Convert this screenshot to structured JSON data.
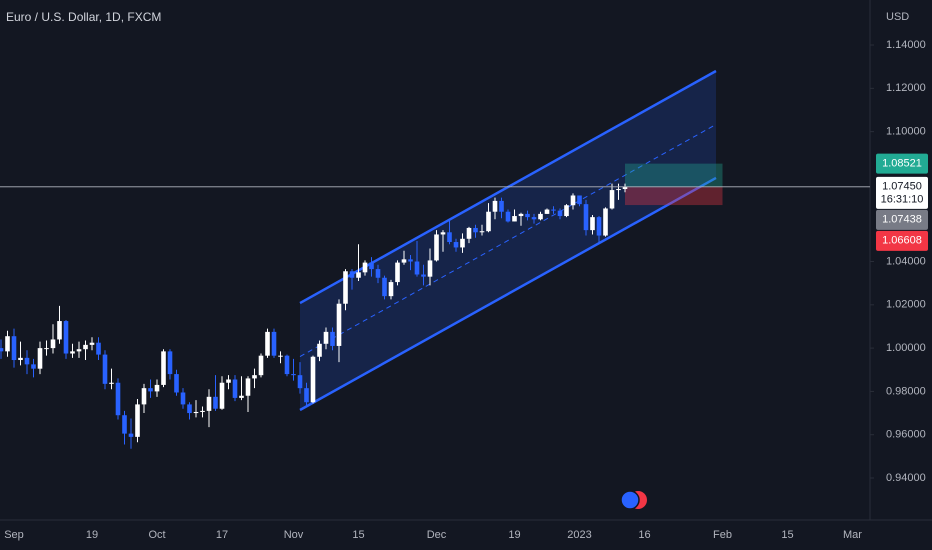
{
  "chart_data": {
    "type": "candlestick",
    "title": "Euro / U.S. Dollar, 1D, FXCM",
    "y_unit": "USD",
    "categories": [
      null,
      null,
      "Sep",
      null,
      null,
      null,
      null,
      null,
      null,
      null,
      null,
      null,
      null,
      null,
      "19",
      null,
      null,
      null,
      null,
      null,
      null,
      null,
      null,
      null,
      "Oct",
      null,
      null,
      null,
      null,
      null,
      null,
      null,
      null,
      null,
      "17",
      null,
      null,
      null,
      null,
      null,
      null,
      null,
      null,
      null,
      null,
      "Nov",
      null,
      null,
      null,
      null,
      null,
      null,
      null,
      null,
      null,
      "15",
      null,
      null,
      null,
      null,
      null,
      null,
      null,
      null,
      null,
      null,
      null,
      "Dec",
      null,
      null,
      null,
      null,
      null,
      null,
      null,
      null,
      null,
      null,
      null,
      "19",
      null,
      null,
      null,
      null,
      null,
      null,
      null,
      null,
      null,
      "2023",
      null,
      null,
      null,
      null,
      null,
      null,
      null,
      null,
      null,
      "16",
      null,
      null,
      null,
      null,
      null,
      null,
      null,
      null,
      null,
      null,
      null,
      "Feb",
      null,
      null,
      null,
      null,
      null,
      null,
      null,
      null,
      null,
      "15",
      null,
      null,
      null,
      null,
      null,
      null,
      null,
      null,
      null,
      "Mar",
      null,
      null
    ],
    "open": [
      1.0,
      0.9985,
      1.0055,
      0.9945,
      0.9955,
      0.9925,
      0.9905,
      1.0,
      1.0,
      1.004,
      1.0125,
      0.9975,
      0.9985,
      0.9995,
      1.0015,
      1.0025,
      0.997,
      0.9835,
      0.984,
      0.969,
      0.9605,
      0.959,
      0.974,
      0.9815,
      0.98,
      0.983,
      0.9985,
      0.988,
      0.9795,
      0.974,
      0.97,
      0.9705,
      0.971,
      0.9775,
      0.972,
      0.984,
      0.9855,
      0.977,
      0.978,
      0.986,
      0.9875,
      0.9965,
      1.0075,
      0.9965,
      0.9965,
      0.988,
      0.9875,
      0.9815,
      0.975,
      0.996,
      1.002,
      1.0075,
      1.001,
      1.0205,
      1.0355,
      1.0325,
      1.035,
      1.0395,
      1.0365,
      1.0325,
      1.024,
      1.0305,
      1.0395,
      1.041,
      1.04,
      1.034,
      1.033,
      1.0405,
      1.0525,
      1.0535,
      1.049,
      1.0465,
      1.0505,
      1.0555,
      1.0535,
      1.054,
      1.063,
      1.068,
      1.063,
      1.0585,
      1.061,
      1.062,
      1.0605,
      1.0595,
      1.062,
      1.064,
      1.0635,
      1.061,
      1.066,
      1.0705,
      1.0665,
      1.0545,
      1.0605,
      1.052,
      1.0645,
      1.073,
      1.0735,
      null,
      null,
      null,
      null,
      null,
      null,
      null,
      null,
      null,
      null,
      null,
      null,
      null,
      null,
      null,
      null,
      null,
      null,
      null,
      null,
      null,
      null,
      null,
      null,
      null,
      null,
      null,
      null,
      null,
      null,
      null,
      null,
      null,
      null,
      null,
      null,
      null
    ],
    "high": [
      1.004,
      1.008,
      1.009,
      1.003,
      0.999,
      0.995,
      1.003,
      1.0035,
      1.011,
      1.0195,
      1.013,
      1.002,
      1.003,
      1.0035,
      1.005,
      1.005,
      0.999,
      0.9905,
      0.986,
      0.971,
      0.9675,
      0.9765,
      0.9835,
      0.9855,
      0.9855,
      0.9995,
      0.9995,
      0.99,
      0.9815,
      0.975,
      0.976,
      0.973,
      0.981,
      0.9875,
      0.987,
      0.9875,
      0.9875,
      0.987,
      0.987,
      0.9905,
      0.9975,
      1.009,
      1.009,
      0.9985,
      0.997,
      0.995,
      0.9935,
      0.984,
      0.9965,
      1.0035,
      1.0095,
      1.0095,
      1.0225,
      1.0365,
      1.0365,
      1.048,
      1.0405,
      1.042,
      1.0385,
      1.0335,
      1.0315,
      1.0405,
      1.045,
      1.043,
      1.0495,
      1.0385,
      1.046,
      1.0545,
      1.0545,
      1.0595,
      1.0505,
      1.053,
      1.056,
      1.057,
      1.057,
      1.067,
      1.0695,
      1.0695,
      1.064,
      1.064,
      1.0625,
      1.0635,
      1.062,
      1.063,
      1.0645,
      1.0655,
      1.0645,
      1.0665,
      1.0715,
      1.0705,
      1.0685,
      1.0615,
      1.061,
      1.065,
      1.076,
      1.076,
      1.076,
      null,
      null,
      null,
      null,
      null,
      null,
      null,
      null,
      null,
      null,
      null,
      null,
      null,
      null,
      null,
      null,
      null,
      null,
      null,
      null,
      null,
      null,
      null,
      null,
      null,
      null,
      null,
      null,
      null,
      null,
      null,
      null,
      null,
      null,
      null,
      null,
      null
    ],
    "low": [
      0.995,
      0.996,
      0.991,
      0.992,
      0.988,
      0.9865,
      0.988,
      0.9965,
      0.9975,
      1.002,
      0.995,
      0.9955,
      0.9955,
      0.9945,
      0.999,
      0.9945,
      0.981,
      0.981,
      0.967,
      0.9555,
      0.9535,
      0.9565,
      0.97,
      0.977,
      0.9775,
      0.982,
      0.9855,
      0.978,
      0.972,
      0.967,
      0.968,
      0.968,
      0.9635,
      0.971,
      0.9715,
      0.981,
      0.9755,
      0.976,
      0.9705,
      0.9815,
      0.9865,
      0.9955,
      0.9955,
      0.993,
      0.987,
      0.985,
      0.979,
      0.973,
      0.9745,
      0.994,
      0.9995,
      0.999,
      0.9935,
      1.0175,
      1.027,
      1.031,
      1.0335,
      1.033,
      1.03,
      1.0225,
      1.0225,
      1.029,
      1.0385,
      1.036,
      1.033,
      1.029,
      1.029,
      1.04,
      1.0445,
      1.048,
      1.0445,
      1.044,
      1.0485,
      1.051,
      1.052,
      1.0535,
      1.0595,
      1.06,
      1.058,
      1.0585,
      1.0565,
      1.059,
      1.0575,
      1.059,
      1.062,
      1.062,
      1.0595,
      1.0605,
      1.064,
      1.0655,
      1.052,
      1.0525,
      1.0485,
      1.0515,
      1.064,
      1.0685,
      1.072,
      null,
      null,
      null,
      null,
      null,
      null,
      null,
      null,
      null,
      null,
      null,
      null,
      null,
      null,
      null,
      null,
      null,
      null,
      null,
      null,
      null,
      null,
      null,
      null,
      null,
      null,
      null,
      null,
      null,
      null,
      null,
      null,
      null,
      null,
      null,
      null,
      null
    ],
    "close": [
      0.9985,
      1.0055,
      0.9945,
      0.9955,
      0.9925,
      0.9905,
      1.0,
      1.0,
      1.004,
      1.0125,
      0.9975,
      0.9985,
      0.9995,
      1.0015,
      1.0025,
      0.997,
      0.9835,
      0.984,
      0.969,
      0.9605,
      0.959,
      0.974,
      0.9815,
      0.98,
      0.983,
      0.9985,
      0.988,
      0.9795,
      0.974,
      0.97,
      0.9705,
      0.971,
      0.9775,
      0.972,
      0.984,
      0.9855,
      0.977,
      0.978,
      0.986,
      0.9875,
      0.9965,
      1.0075,
      0.9965,
      0.9965,
      0.988,
      0.9875,
      0.9815,
      0.975,
      0.996,
      1.002,
      1.0075,
      1.001,
      1.0205,
      1.0355,
      1.0325,
      1.035,
      1.0395,
      1.0365,
      1.0325,
      1.024,
      1.0305,
      1.0395,
      1.041,
      1.04,
      1.034,
      1.033,
      1.0405,
      1.0525,
      1.0535,
      1.049,
      1.0465,
      1.0505,
      1.0555,
      1.0535,
      1.054,
      1.063,
      1.068,
      1.063,
      1.0585,
      1.061,
      1.062,
      1.0605,
      1.0595,
      1.062,
      1.064,
      1.0635,
      1.061,
      1.066,
      1.0705,
      1.0665,
      1.0545,
      1.0605,
      1.052,
      1.0645,
      1.073,
      1.0735,
      1.0745,
      null,
      null,
      null,
      null,
      null,
      null,
      null,
      null,
      null,
      null,
      null,
      null,
      null,
      null,
      null,
      null,
      null,
      null,
      null,
      null,
      null,
      null,
      null,
      null,
      null,
      null,
      null,
      null,
      null,
      null,
      null,
      null,
      null,
      null,
      null,
      null,
      null
    ],
    "up_color": "#ffffff",
    "down_color": "#2962ff",
    "ylim": [
      0.9206,
      1.1608
    ],
    "yticks": [
      {
        "value": 1.14,
        "label": "1.14000"
      },
      {
        "value": 1.12,
        "label": "1.12000"
      },
      {
        "value": 1.1,
        "label": "1.10000"
      },
      {
        "value": 1.04,
        "label": "1.04000"
      },
      {
        "value": 1.02,
        "label": "1.02000"
      },
      {
        "value": 1.0,
        "label": "1.00000"
      },
      {
        "value": 0.98,
        "label": "0.98000"
      },
      {
        "value": 0.96,
        "label": "0.96000"
      },
      {
        "value": 0.94,
        "label": "0.94000"
      }
    ],
    "channel": {
      "upper": [
        1.0208,
        1.128
      ],
      "mid": [
        0.9961,
        1.1033
      ],
      "lower": [
        0.9714,
        1.0786
      ],
      "color": "#2962ff"
    },
    "position": {
      "take_profit": 1.08521,
      "entry": 1.07438,
      "stop_loss": 1.06608
    },
    "last_price": {
      "value": 1.0745,
      "label": "1.07450"
    },
    "countdown": "16:31:10"
  }
}
